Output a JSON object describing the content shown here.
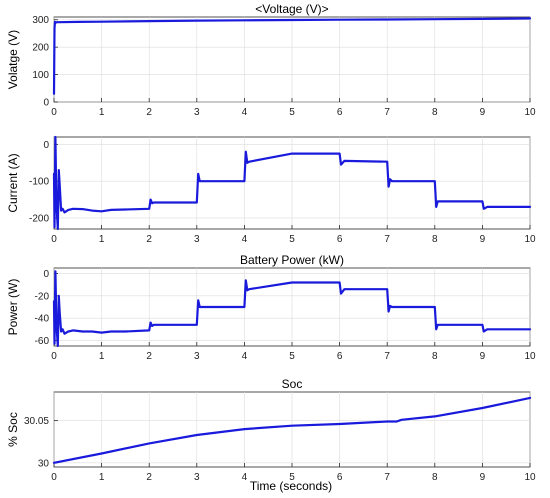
{
  "figure": {
    "xlabel": "Time (seconds)"
  },
  "colors": {
    "trace": "#1a1adc"
  },
  "chart_data": [
    {
      "type": "line",
      "title": "<Voltage (V)>",
      "ylabel": "Volatge (V)",
      "xlim": [
        0,
        10
      ],
      "ylim": [
        0,
        310
      ],
      "xticks": [
        0,
        1,
        2,
        3,
        4,
        5,
        6,
        7,
        8,
        9,
        10
      ],
      "yticks": [
        0,
        100,
        200,
        300
      ],
      "grid": true,
      "series": [
        {
          "x": [
            0,
            0.01,
            0.02,
            0.03,
            0.05,
            0.1,
            0.5,
            1,
            2,
            3,
            4,
            5,
            6,
            7,
            8,
            9,
            10
          ],
          "y": [
            30,
            270,
            292,
            288,
            291,
            291,
            292,
            293,
            295,
            297,
            298,
            299,
            300,
            301,
            302,
            303,
            305
          ]
        }
      ]
    },
    {
      "type": "line",
      "title": "",
      "ylabel": "Current (A)",
      "xlim": [
        0,
        10
      ],
      "ylim": [
        -230,
        20
      ],
      "xticks": [
        0,
        1,
        2,
        3,
        4,
        5,
        6,
        7,
        8,
        9,
        10
      ],
      "yticks": [
        -200,
        -100,
        0
      ],
      "grid": true,
      "series": [
        {
          "x": [
            0,
            0.01,
            0.03,
            0.05,
            0.08,
            0.1,
            0.12,
            0.15,
            0.18,
            0.22,
            0.3,
            0.4,
            0.6,
            0.8,
            1.0,
            1.2,
            1.5,
            2.0,
            2.03,
            2.06,
            2.1,
            3.0,
            3.03,
            3.06,
            3.1,
            4.0,
            4.03,
            4.06,
            4.1,
            5.0,
            6.0,
            6.03,
            6.1,
            7.0,
            7.03,
            7.06,
            7.1,
            8.0,
            8.03,
            8.06,
            8.1,
            9.0,
            9.03,
            9.1,
            10
          ],
          "y": [
            -80,
            -225,
            20,
            -160,
            -230,
            -70,
            -110,
            -180,
            -175,
            -185,
            -178,
            -175,
            -176,
            -180,
            -182,
            -178,
            -177,
            -175,
            -150,
            -160,
            -158,
            -158,
            -80,
            -100,
            -100,
            -100,
            -20,
            -50,
            -47,
            -25,
            -25,
            -55,
            -45,
            -47,
            -115,
            -95,
            -100,
            -100,
            -170,
            -155,
            -155,
            -155,
            -175,
            -170,
            -170
          ]
        }
      ]
    },
    {
      "type": "line",
      "title": "Battery Power (kW)",
      "ylabel": "Power (W)",
      "xlim": [
        0,
        10
      ],
      "ylim": [
        -65,
        5
      ],
      "xticks": [
        0,
        1,
        2,
        3,
        4,
        5,
        6,
        7,
        8,
        9,
        10
      ],
      "yticks": [
        -60,
        -40,
        -20,
        0
      ],
      "grid": true,
      "series": [
        {
          "x": [
            0,
            0.01,
            0.03,
            0.05,
            0.08,
            0.1,
            0.12,
            0.15,
            0.18,
            0.22,
            0.3,
            0.4,
            0.6,
            0.8,
            1.0,
            1.2,
            1.5,
            2.0,
            2.03,
            2.06,
            2.1,
            3.0,
            3.03,
            3.06,
            3.1,
            4.0,
            4.03,
            4.06,
            4.1,
            5.0,
            6.0,
            6.03,
            6.1,
            7.0,
            7.03,
            7.06,
            7.1,
            8.0,
            8.03,
            8.06,
            8.1,
            9.0,
            9.03,
            9.1,
            10
          ],
          "y": [
            -25,
            -63,
            2,
            -45,
            -65,
            -20,
            -35,
            -52,
            -50,
            -54,
            -52,
            -51,
            -52,
            -52,
            -53,
            -52,
            -52,
            -51,
            -44,
            -47,
            -46,
            -46,
            -24,
            -30,
            -30,
            -30,
            -6,
            -15,
            -14,
            -8,
            -8,
            -18,
            -14,
            -14,
            -34,
            -29,
            -30,
            -30,
            -50,
            -46,
            -46,
            -46,
            -52,
            -50,
            -50
          ]
        }
      ]
    },
    {
      "type": "line",
      "title": "Soc",
      "ylabel": "% Soc",
      "xlim": [
        0,
        10
      ],
      "ylim": [
        29.995,
        30.084
      ],
      "xticks": [
        0,
        1,
        2,
        3,
        4,
        5,
        6,
        7,
        8,
        9,
        10
      ],
      "yticks": [
        30,
        30.05
      ],
      "ytick_labels": [
        "30",
        "30.05"
      ],
      "grid": true,
      "series": [
        {
          "x": [
            0,
            1,
            2,
            3,
            4,
            5,
            6,
            7,
            7.2,
            7.3,
            8,
            9,
            10
          ],
          "y": [
            30.0,
            30.011,
            30.023,
            30.033,
            30.04,
            30.044,
            30.046,
            30.049,
            30.049,
            30.051,
            30.055,
            30.065,
            30.077
          ]
        }
      ]
    }
  ]
}
